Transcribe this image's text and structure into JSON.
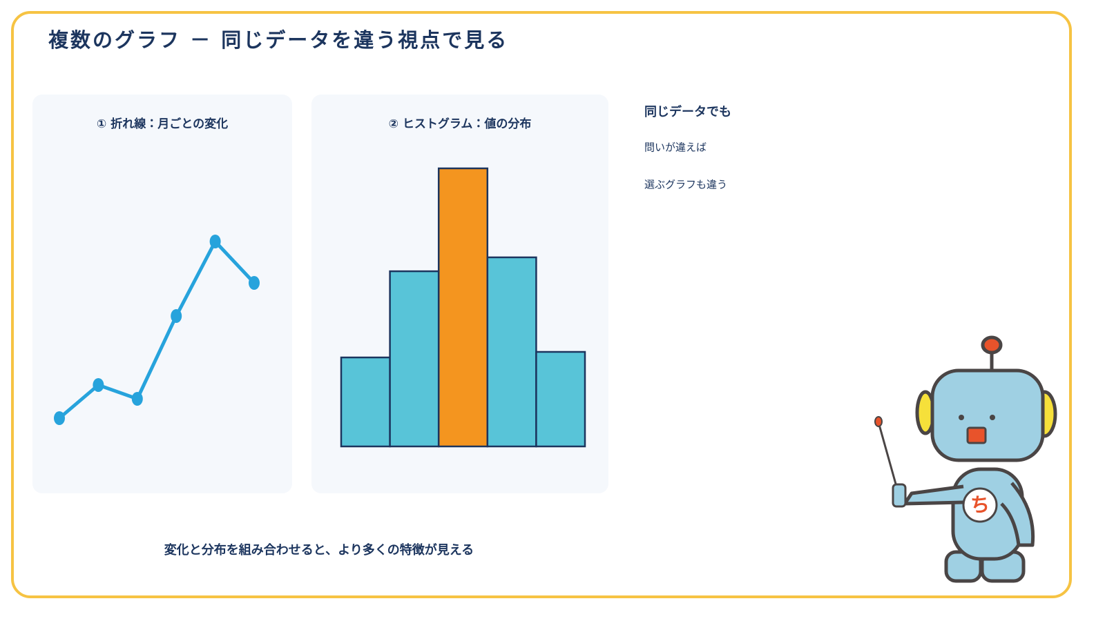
{
  "title": "複数のグラフ － 同じデータを違う視点で見る",
  "chart_data": [
    {
      "type": "line",
      "title": "① 折れ線：月ごとの変化",
      "categories": [
        null,
        null,
        null,
        null,
        null,
        null
      ],
      "values": [
        11,
        23,
        18,
        48,
        75,
        60
      ],
      "color": "#27a3dc",
      "ylim": [
        0,
        100
      ]
    },
    {
      "type": "bar",
      "title": "② ヒストグラム：値の分布",
      "categories": [
        null,
        null,
        null,
        null,
        null
      ],
      "values": [
        32,
        63,
        100,
        68,
        34
      ],
      "colors": [
        "#58c4d8",
        "#58c4d8",
        "#f4951f",
        "#58c4d8",
        "#58c4d8"
      ],
      "ylim": [
        0,
        100
      ]
    }
  ],
  "notes": [
    "同じデータでも",
    "問いが違えば",
    "選ぶグラフも違う"
  ],
  "caption": "変化と分布を組み合わせると、より多くの特徴が見える",
  "robot_badge": "ち"
}
